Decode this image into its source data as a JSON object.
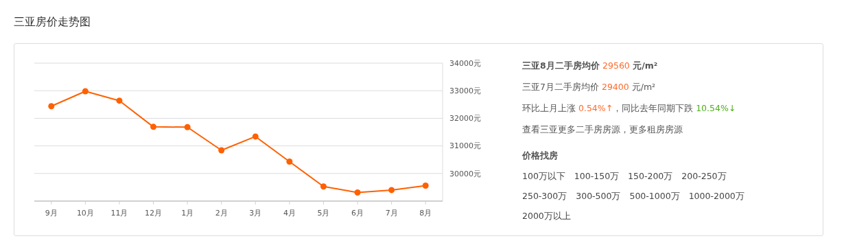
{
  "chart_data": {
    "type": "line",
    "title": "三亚房价走势图",
    "categories": [
      "9月",
      "10月",
      "11月",
      "12月",
      "1月",
      "2月",
      "3月",
      "4月",
      "5月",
      "6月",
      "7月",
      "8月"
    ],
    "series": [
      {
        "color": "#ff6000",
        "values": [
          32440,
          32980,
          32640,
          31690,
          31680,
          30840,
          31340,
          30430,
          29530,
          29310,
          29400,
          29560
        ]
      }
    ],
    "ylim": [
      29000,
      34000
    ],
    "yticks": [
      {
        "value": 30000,
        "label": "30000元"
      },
      {
        "value": 31000,
        "label": "31000元"
      },
      {
        "value": 32000,
        "label": "32000元"
      },
      {
        "value": 33000,
        "label": "33000元"
      },
      {
        "value": 34000,
        "label": "34000元"
      }
    ],
    "grid": "y",
    "marker": "circle",
    "annotations": [
      "三亚8月二手房均价 29560 元/m²",
      "三亚7月二手房均价 29400 元/m²",
      "环比上月上涨 0.54%↑，同比去年同期下跌 10.54%↓",
      "查看三亚更多二手房房源，更多租房房源",
      "价格找房",
      "100万以下",
      "100-150万",
      "150-200万",
      "200-250万",
      "250-300万",
      "300-500万",
      "500-1000万",
      "1000-2000万",
      "2000万以上"
    ]
  }
}
